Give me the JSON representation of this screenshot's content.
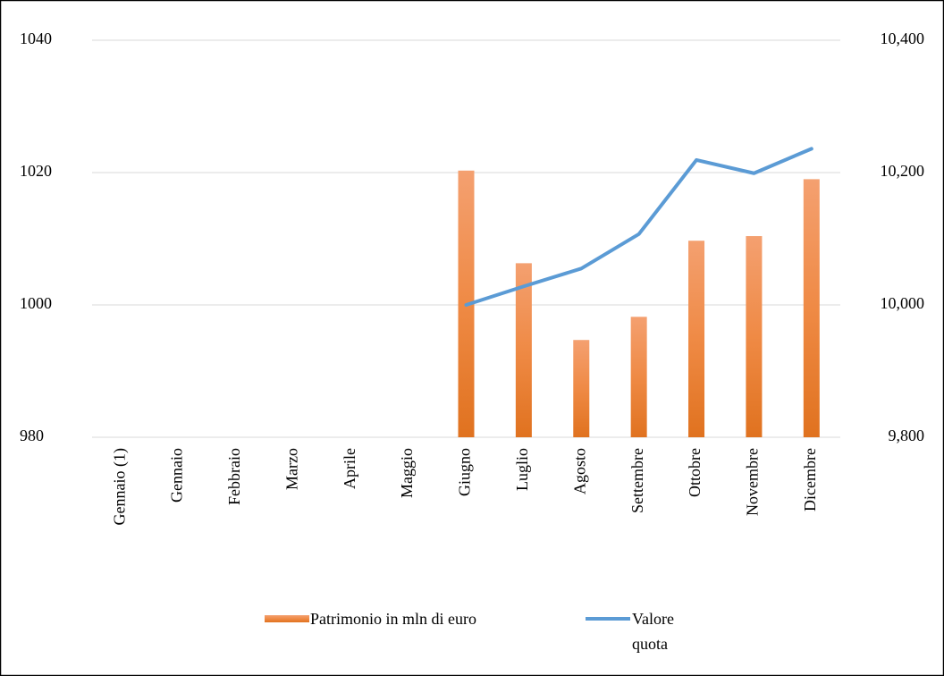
{
  "chart_data": {
    "type": "bar_line",
    "categories": [
      "Gennaio (1)",
      "Gennaio",
      "Febbraio",
      "Marzo",
      "Aprile",
      "Maggio",
      "Giugno",
      "Luglio",
      "Agosto",
      "Settembre",
      "Ottobre",
      "Novembre",
      "Dicembre"
    ],
    "series": [
      {
        "name": "Patrimonio in mln di euro",
        "type": "bar",
        "color": "#ed7d31",
        "axis": "y",
        "values": [
          null,
          null,
          null,
          null,
          null,
          null,
          1020.3,
          1006.3,
          994.7,
          998.2,
          1009.7,
          1010.4,
          1019
        ]
      },
      {
        "name": "Valore quota",
        "type": "line",
        "color": "#5b9bd5",
        "axis": "y2",
        "values": [
          null,
          null,
          null,
          null,
          null,
          null,
          10000,
          10028,
          10055,
          10107,
          10219,
          10199,
          10236
        ]
      }
    ],
    "ylim": [
      980,
      1040
    ],
    "yticks": [
      980,
      1000,
      1020,
      1040
    ],
    "y2lim": [
      9800,
      10400
    ],
    "y2ticks": [
      {
        "value": 9800,
        "label": "9,800"
      },
      {
        "value": 10000,
        "label": "10,000"
      },
      {
        "value": 10200,
        "label": "10,200"
      },
      {
        "value": 10400,
        "label": "10,400"
      }
    ],
    "grid": true,
    "legend": "bottom"
  }
}
